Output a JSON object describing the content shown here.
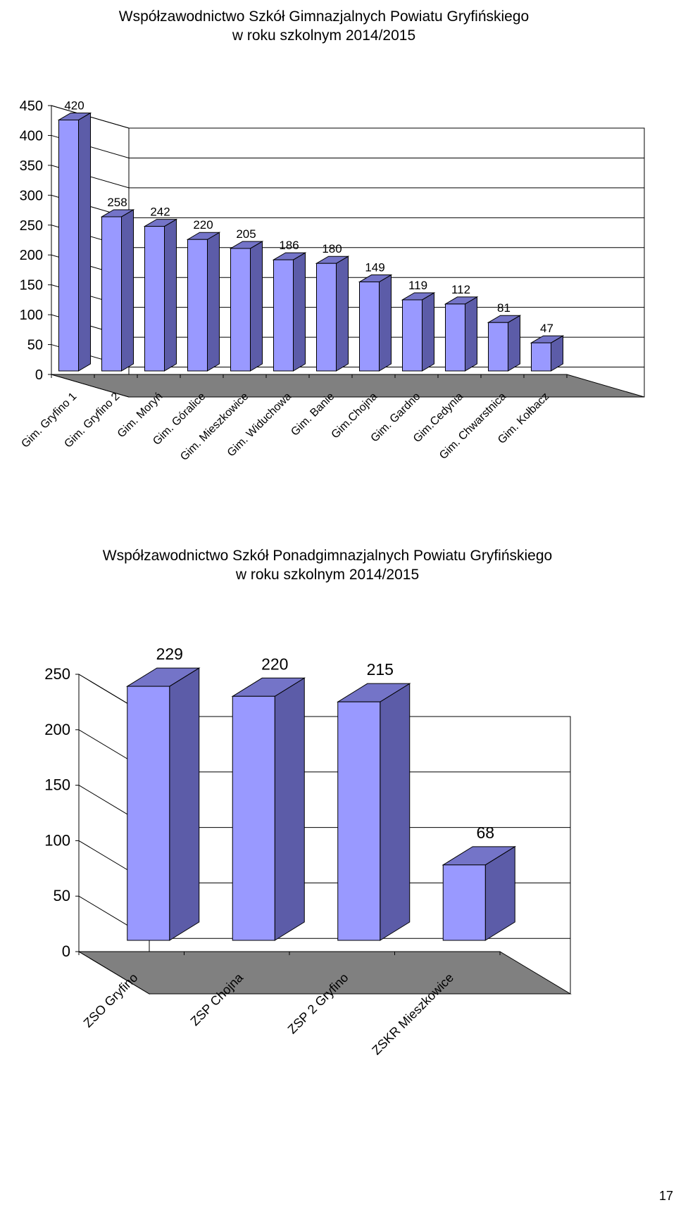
{
  "chart_data": [
    {
      "type": "bar",
      "title": "Współzawodnictwo Szkół Gimnazjalnych Powiatu Gryfińskiego",
      "subtitle": "w roku szkolnym 2014/2015",
      "categories": [
        "Gim. Gryfino 1",
        "Gim. Gryfino 2",
        "Gim. Moryń",
        "Gim. Góralice",
        "Gim. Mieszkowice",
        "Gim. Widuchowa",
        "Gim. Banie",
        "Gim.Chojna",
        "Gim. Gardno",
        "Gim.Cedynia",
        "Gim. Chwarstnica",
        "Gim. Kołbacz"
      ],
      "values": [
        420,
        258,
        242,
        220,
        205,
        186,
        180,
        149,
        119,
        112,
        81,
        47
      ],
      "ylim": [
        0,
        450
      ],
      "yticks": [
        0,
        50,
        100,
        150,
        200,
        250,
        300,
        350,
        400,
        450
      ],
      "grid": true,
      "style": "3d",
      "bar_color": "#9999ff",
      "floor_color": "#808080"
    },
    {
      "type": "bar",
      "title": "Współzawodnictwo Szkół Ponadgimnazjalnych Powiatu Gryfińskiego",
      "subtitle": "w roku szkolnym 2014/2015",
      "categories": [
        "ZSO Gryfino",
        "ZSP Chojna",
        "ZSP 2 Gryfino",
        "ZSKR Mieszkowice"
      ],
      "values": [
        229,
        220,
        215,
        68
      ],
      "ylim": [
        0,
        250
      ],
      "yticks": [
        0,
        50,
        100,
        150,
        200,
        250
      ],
      "grid": true,
      "style": "3d",
      "bar_color": "#9999ff",
      "floor_color": "#808080"
    }
  ],
  "page_number": "17"
}
